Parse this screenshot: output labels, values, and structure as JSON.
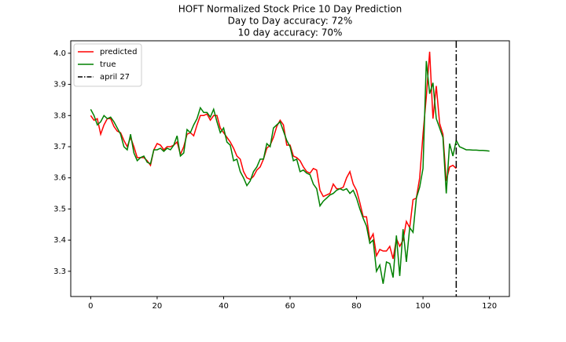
{
  "chart_data": {
    "type": "line",
    "title": "HOFT Normalized Stock Price 10 Day Prediction",
    "subtitle": [
      "Day to Day accuracy: 72%",
      "10 day accuracy: 70%"
    ],
    "x": [
      0,
      1,
      2,
      3,
      4,
      5,
      6,
      7,
      8,
      9,
      10,
      11,
      12,
      13,
      14,
      15,
      16,
      17,
      18,
      19,
      20,
      21,
      22,
      23,
      24,
      25,
      26,
      27,
      28,
      29,
      30,
      31,
      32,
      33,
      34,
      35,
      36,
      37,
      38,
      39,
      40,
      41,
      42,
      43,
      44,
      45,
      46,
      47,
      48,
      49,
      50,
      51,
      52,
      53,
      54,
      55,
      56,
      57,
      58,
      59,
      60,
      61,
      62,
      63,
      64,
      65,
      66,
      67,
      68,
      69,
      70,
      71,
      72,
      73,
      74,
      75,
      76,
      77,
      78,
      79,
      80,
      81,
      82,
      83,
      84,
      85,
      86,
      87,
      88,
      89,
      90,
      91,
      92,
      93,
      94,
      95,
      96,
      97,
      98,
      99,
      100,
      101,
      102,
      103,
      104,
      105,
      106,
      107,
      108,
      109,
      110,
      111,
      112,
      113,
      114,
      115,
      116,
      117,
      118,
      119,
      120
    ],
    "series": [
      {
        "name": "predicted",
        "color": "#ff0000",
        "values": [
          3.8,
          3.785,
          3.79,
          3.74,
          3.77,
          3.79,
          3.79,
          3.765,
          3.75,
          3.745,
          3.72,
          3.7,
          3.73,
          3.7,
          3.665,
          3.665,
          3.665,
          3.655,
          3.64,
          3.69,
          3.71,
          3.705,
          3.69,
          3.7,
          3.7,
          3.705,
          3.715,
          3.675,
          3.7,
          3.74,
          3.745,
          3.735,
          3.77,
          3.8,
          3.8,
          3.805,
          3.785,
          3.8,
          3.8,
          3.76,
          3.745,
          3.73,
          3.715,
          3.695,
          3.67,
          3.66,
          3.62,
          3.6,
          3.595,
          3.605,
          3.625,
          3.635,
          3.66,
          3.695,
          3.705,
          3.73,
          3.765,
          3.785,
          3.77,
          3.705,
          3.705,
          3.67,
          3.665,
          3.655,
          3.635,
          3.62,
          3.615,
          3.63,
          3.625,
          3.56,
          3.54,
          3.545,
          3.55,
          3.58,
          3.565,
          3.565,
          3.57,
          3.6,
          3.62,
          3.58,
          3.56,
          3.52,
          3.475,
          3.475,
          3.4,
          3.42,
          3.35,
          3.37,
          3.365,
          3.365,
          3.38,
          3.34,
          3.405,
          3.38,
          3.4,
          3.46,
          3.44,
          3.53,
          3.535,
          3.6,
          3.74,
          3.86,
          4.005,
          3.79,
          3.895,
          3.775,
          3.74,
          3.59,
          3.635,
          3.64,
          3.63,
          null,
          null,
          null,
          null,
          null,
          null,
          null,
          null,
          null,
          null
        ]
      },
      {
        "name": "true",
        "color": "#008000",
        "values": [
          3.82,
          3.8,
          3.77,
          3.78,
          3.8,
          3.79,
          3.795,
          3.78,
          3.76,
          3.74,
          3.7,
          3.69,
          3.74,
          3.68,
          3.655,
          3.665,
          3.67,
          3.65,
          3.645,
          3.69,
          3.69,
          3.695,
          3.685,
          3.695,
          3.69,
          3.705,
          3.735,
          3.67,
          3.68,
          3.755,
          3.745,
          3.77,
          3.79,
          3.825,
          3.81,
          3.81,
          3.795,
          3.82,
          3.78,
          3.745,
          3.76,
          3.715,
          3.705,
          3.655,
          3.66,
          3.62,
          3.6,
          3.575,
          3.59,
          3.62,
          3.635,
          3.66,
          3.66,
          3.71,
          3.7,
          3.76,
          3.77,
          3.78,
          3.75,
          3.72,
          3.7,
          3.655,
          3.66,
          3.62,
          3.625,
          3.615,
          3.61,
          3.58,
          3.565,
          3.51,
          3.525,
          3.535,
          3.545,
          3.55,
          3.56,
          3.565,
          3.56,
          3.565,
          3.55,
          3.56,
          3.535,
          3.5,
          3.47,
          3.445,
          3.39,
          3.4,
          3.3,
          3.32,
          3.26,
          3.33,
          3.325,
          3.28,
          3.415,
          3.285,
          3.435,
          3.33,
          3.44,
          3.425,
          3.535,
          3.57,
          3.63,
          3.975,
          3.87,
          3.905,
          3.79,
          3.76,
          3.73,
          3.55,
          3.71,
          3.67,
          3.72,
          3.7,
          3.695,
          3.69,
          3.69,
          3.689,
          3.689,
          3.688,
          3.688,
          3.687,
          3.686
        ]
      }
    ],
    "vlines": [
      {
        "name": "april 27",
        "x": 110,
        "color": "#000000"
      }
    ],
    "xlim": [
      -6,
      126
    ],
    "ylim": [
      3.219,
      4.04
    ],
    "xticks": [
      0,
      20,
      40,
      60,
      80,
      100,
      120
    ],
    "yticks": [
      3.3,
      3.4,
      3.5,
      3.6,
      3.7,
      3.8,
      3.9,
      {
        "value": 4.0,
        "label": "4.0"
      }
    ],
    "legend": "upper left",
    "grid": false
  }
}
